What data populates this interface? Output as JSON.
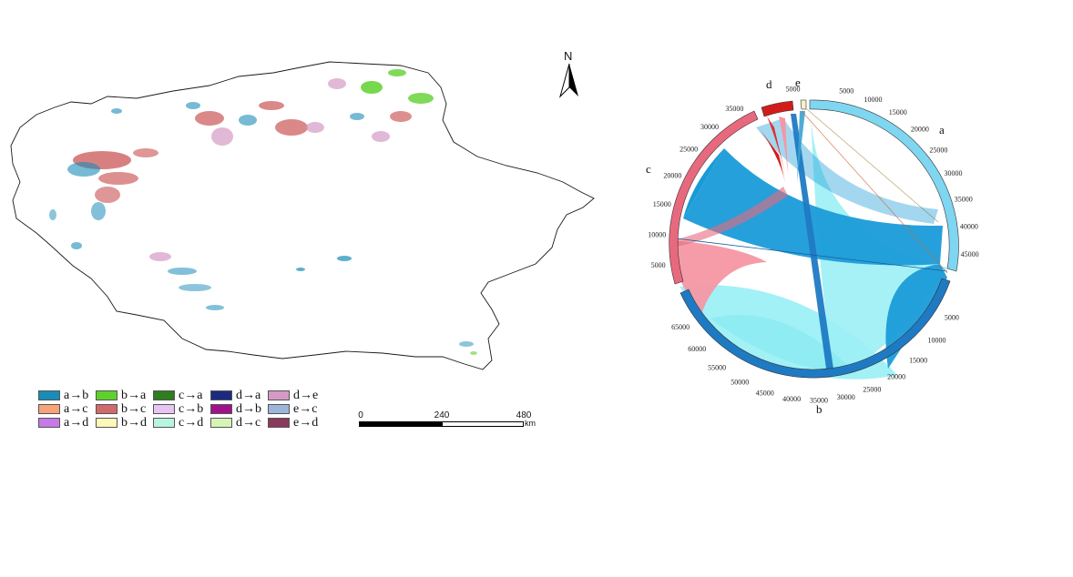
{
  "legend": {
    "items": [
      {
        "label": "a→b",
        "color": "#1a8cb8"
      },
      {
        "label": "b→a",
        "color": "#5fd12e"
      },
      {
        "label": "c→a",
        "color": "#2e7d1e"
      },
      {
        "label": "d→a",
        "color": "#1b2a80"
      },
      {
        "label": "d→e",
        "color": "#d49ac4"
      },
      {
        "label": "a→c",
        "color": "#f7a37a"
      },
      {
        "label": "b→c",
        "color": "#d16a6a"
      },
      {
        "label": "c→b",
        "color": "#e7c4f2"
      },
      {
        "label": "d→b",
        "color": "#a0128a"
      },
      {
        "label": "e→c",
        "color": "#9cb6d9"
      },
      {
        "label": "a→d",
        "color": "#c57ae8"
      },
      {
        "label": "b→d",
        "color": "#fdf7b8"
      },
      {
        "label": "c→d",
        "color": "#b8f5e0"
      },
      {
        "label": "d→c",
        "color": "#d5f5b5"
      },
      {
        "label": "e→d",
        "color": "#8a3a5a"
      }
    ]
  },
  "scalebar": {
    "labels": [
      "0",
      "240",
      "480"
    ],
    "unit": "km"
  },
  "north_arrow": {
    "label": "N"
  },
  "chart_data": {
    "type": "chord",
    "sectors": [
      {
        "name": "a",
        "color": "#7fd6f0",
        "ticks": [
          "5000",
          "10000",
          "15000",
          "20000",
          "25000",
          "30000",
          "35000",
          "40000",
          "45000"
        ]
      },
      {
        "name": "b",
        "color": "#1f7ac4",
        "ticks": [
          "5000",
          "10000",
          "15000",
          "20000",
          "25000",
          "30000",
          "35000",
          "40000",
          "45000",
          "50000",
          "55000",
          "60000",
          "65000"
        ]
      },
      {
        "name": "c",
        "color": "#e8697e",
        "ticks": [
          "5000",
          "10000",
          "15000",
          "20000",
          "25000",
          "30000",
          "35000"
        ]
      },
      {
        "name": "d",
        "color": "#d21c1c",
        "ticks": [
          "5000"
        ]
      },
      {
        "name": "e",
        "color": "#f3f3c9",
        "ticks": []
      }
    ]
  }
}
